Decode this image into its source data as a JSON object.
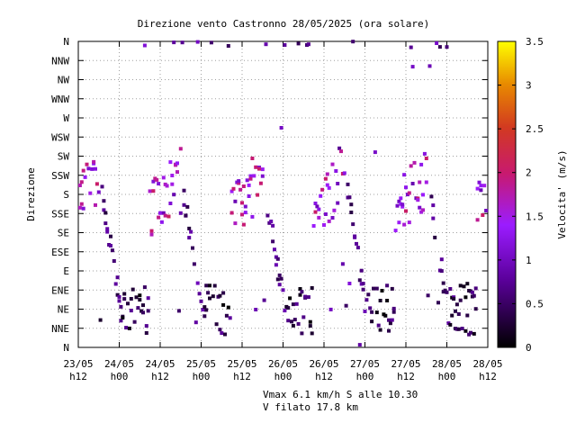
{
  "chart_data": {
    "type": "scatter",
    "title": "Direzione vento Castronno 28/05/2025 (ora solare)",
    "ylabel": "Direzione",
    "colorbar_label": "Velocita' (m/s)",
    "colorbar_ticks": [
      "0",
      "0.5",
      "1",
      "1.5",
      "2",
      "2.5",
      "3",
      "3.5"
    ],
    "colorbar_range": [
      0,
      3.5
    ],
    "y_categories": [
      "N",
      "NNE",
      "NE",
      "ENE",
      "E",
      "ESE",
      "SE",
      "SSE",
      "S",
      "SSW",
      "SW",
      "WSW",
      "W",
      "WNW",
      "NW",
      "NNW",
      "N"
    ],
    "x_ticks": [
      {
        "date": "23/05",
        "hour": "h12"
      },
      {
        "date": "24/05",
        "hour": "h00"
      },
      {
        "date": "24/05",
        "hour": "h12"
      },
      {
        "date": "25/05",
        "hour": "h00"
      },
      {
        "date": "25/05",
        "hour": "h12"
      },
      {
        "date": "26/05",
        "hour": "h00"
      },
      {
        "date": "26/05",
        "hour": "h12"
      },
      {
        "date": "27/05",
        "hour": "h00"
      },
      {
        "date": "27/05",
        "hour": "h12"
      },
      {
        "date": "28/05",
        "hour": "h00"
      },
      {
        "date": "28/05",
        "hour": "h12"
      }
    ],
    "x_range_hours": [
      0,
      120
    ],
    "y_range_degrees": [
      0,
      360
    ],
    "grid": true,
    "series_speed_colormap": "gnuplot palette: black-purple-red-orange-yellow",
    "notes": "Points: x in hours since 23/05 h12, y in compass degrees, s = wind speed m/s (approximate readings)"
  },
  "footer": {
    "line1": "Vmax 6.1 km/h S alle 10.30",
    "line2": "V filato 17.8 km"
  }
}
